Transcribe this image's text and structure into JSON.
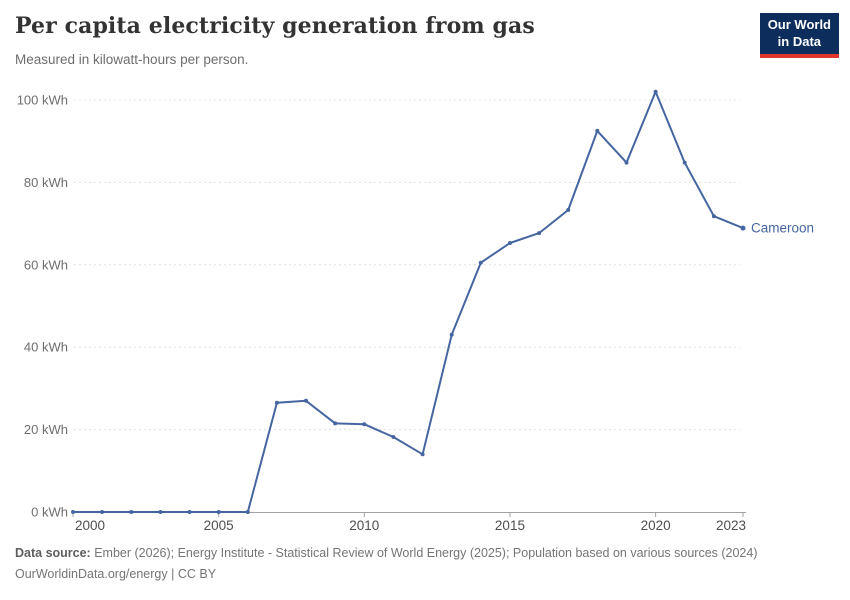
{
  "header": {
    "title": "Per capita electricity generation from gas",
    "subtitle": "Measured in kilowatt-hours per person.",
    "logo": {
      "line1": "Our World",
      "line2": "in Data"
    }
  },
  "chart_data": {
    "type": "line",
    "title": "Per capita electricity generation from gas",
    "ylabel": "kilowatt-hours per person",
    "unit": "kWh",
    "x": [
      2000,
      2001,
      2002,
      2003,
      2004,
      2005,
      2006,
      2007,
      2008,
      2009,
      2010,
      2011,
      2012,
      2013,
      2014,
      2015,
      2016,
      2017,
      2018,
      2019,
      2020,
      2021,
      2022,
      2023
    ],
    "series": [
      {
        "name": "Cameroon",
        "color": "#4566a0",
        "values": [
          0,
          0,
          0,
          0,
          0,
          0,
          0,
          26.5,
          27,
          21.5,
          21.3,
          18.2,
          14,
          43,
          60.5,
          65.3,
          67.7,
          73.3,
          92.5,
          84.8,
          102,
          84.8,
          71.8,
          68.9
        ]
      }
    ],
    "xlim": [
      2000,
      2023
    ],
    "ylim": [
      0,
      100
    ],
    "x_ticks": [
      {
        "value": 2000,
        "label": "2000"
      },
      {
        "value": 2005,
        "label": "2005"
      },
      {
        "value": 2010,
        "label": "2010"
      },
      {
        "value": 2015,
        "label": "2015"
      },
      {
        "value": 2020,
        "label": "2020"
      },
      {
        "value": 2023,
        "label": "2023"
      }
    ],
    "y_ticks": [
      {
        "value": 0,
        "label": "0 kWh"
      },
      {
        "value": 20,
        "label": "20 kWh"
      },
      {
        "value": 40,
        "label": "40 kWh"
      },
      {
        "value": 60,
        "label": "60 kWh"
      },
      {
        "value": 80,
        "label": "80 kWh"
      },
      {
        "value": 100,
        "label": "100 kWh"
      }
    ],
    "grid": "horizontal-dashed",
    "legend": "series-end-label"
  },
  "footer": {
    "datasource_label": "Data source:",
    "datasource_text": " Ember (2026); Energy Institute - Statistical Review of World Energy (2025); Population based on various sources (2024)",
    "link": "OurWorldinData.org/energy",
    "separator": " | ",
    "license": "CC BY"
  },
  "colors": {
    "line": "#4566a0",
    "grid": "#e0e0e0",
    "axis": "#a3a3a3",
    "logo_bg": "#0d2e5c",
    "logo_accent": "#e0362c"
  }
}
